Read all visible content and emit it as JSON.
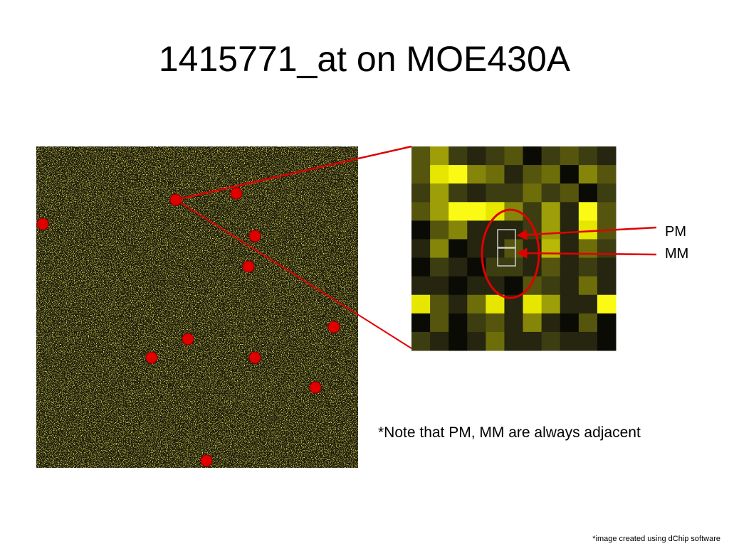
{
  "header": {
    "title": "1415771_at on MOE430A"
  },
  "labels": {
    "pm": "PM",
    "mm": "MM"
  },
  "note": "*Note that PM, MM are always adjacent",
  "footer": "*image created using dChip software"
}
